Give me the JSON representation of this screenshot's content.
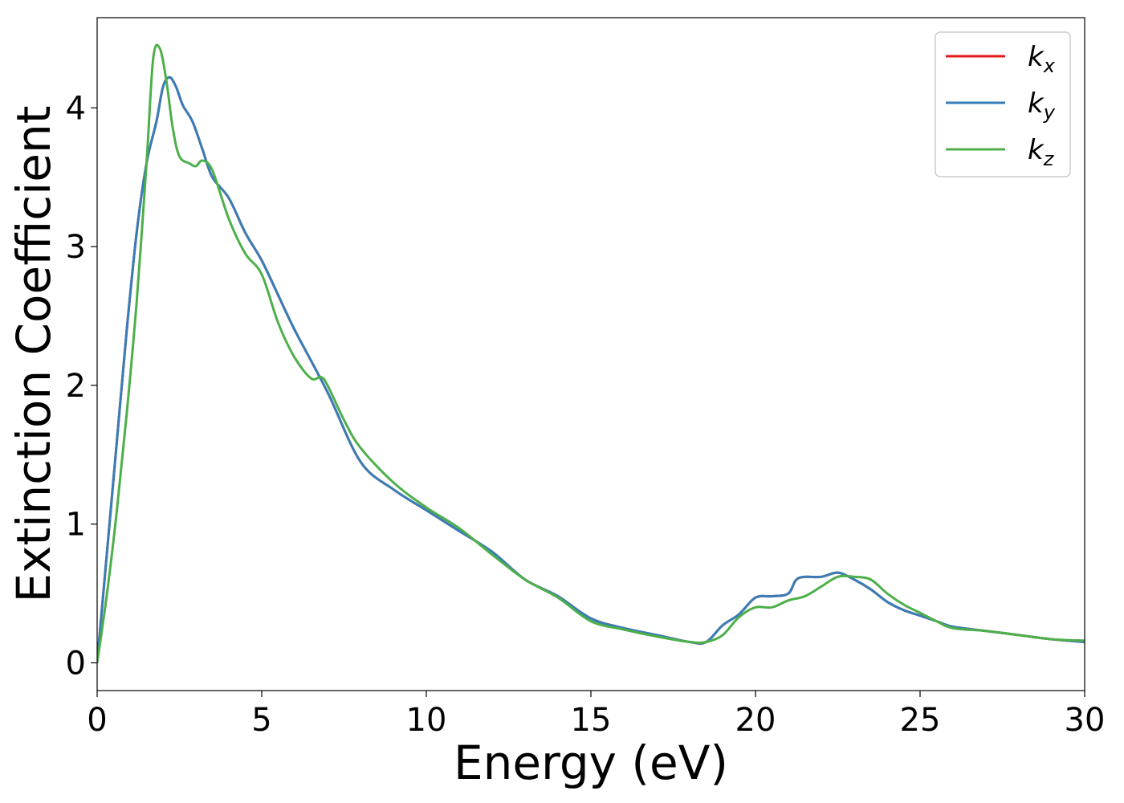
{
  "chart_data": {
    "type": "line",
    "title": "",
    "xlabel": "Energy (eV)",
    "ylabel": "Extinction Coefficient",
    "xlim": [
      0,
      30
    ],
    "ylim": [
      -0.2,
      4.65
    ],
    "xticks": [
      0,
      5,
      10,
      15,
      20,
      25,
      30
    ],
    "yticks": [
      0,
      1,
      2,
      3,
      4
    ],
    "grid": false,
    "legend_position": "top-right",
    "series": [
      {
        "name": "k_x",
        "legend_base": "k",
        "legend_sub": "x",
        "color": "#e41a1c",
        "x": [
          0,
          0.3,
          0.6,
          0.9,
          1.2,
          1.5,
          1.8,
          2.0,
          2.2,
          2.4,
          2.6,
          2.9,
          3.2,
          3.5,
          4.0,
          4.5,
          5.0,
          5.5,
          6.0,
          7.0,
          8.0,
          9.0,
          10.0,
          11.0,
          12.0,
          13.0,
          14.0,
          15.0,
          16.0,
          17.0,
          18.0,
          18.5,
          19.0,
          19.5,
          20.0,
          20.5,
          21.0,
          21.3,
          22.0,
          22.5,
          23.0,
          23.5,
          24.0,
          24.5,
          25.0,
          25.5,
          26.0,
          27.0,
          28.0,
          29.0,
          30.0
        ],
        "y": [
          0,
          0.8,
          1.6,
          2.4,
          3.1,
          3.6,
          3.9,
          4.15,
          4.22,
          4.15,
          4.02,
          3.9,
          3.7,
          3.5,
          3.35,
          3.1,
          2.9,
          2.65,
          2.4,
          1.95,
          1.45,
          1.25,
          1.1,
          0.95,
          0.8,
          0.6,
          0.48,
          0.32,
          0.25,
          0.2,
          0.15,
          0.15,
          0.27,
          0.35,
          0.47,
          0.48,
          0.5,
          0.61,
          0.62,
          0.65,
          0.6,
          0.53,
          0.44,
          0.38,
          0.34,
          0.3,
          0.26,
          0.23,
          0.2,
          0.17,
          0.15
        ]
      },
      {
        "name": "k_y",
        "legend_base": "k",
        "legend_sub": "y",
        "color": "#377eb8",
        "x": [
          0,
          0.3,
          0.6,
          0.9,
          1.2,
          1.5,
          1.8,
          2.0,
          2.2,
          2.4,
          2.6,
          2.9,
          3.2,
          3.5,
          4.0,
          4.5,
          5.0,
          5.5,
          6.0,
          7.0,
          8.0,
          9.0,
          10.0,
          11.0,
          12.0,
          13.0,
          14.0,
          15.0,
          16.0,
          17.0,
          18.0,
          18.5,
          19.0,
          19.5,
          20.0,
          20.5,
          21.0,
          21.3,
          22.0,
          22.5,
          23.0,
          23.5,
          24.0,
          24.5,
          25.0,
          25.5,
          26.0,
          27.0,
          28.0,
          29.0,
          30.0
        ],
        "y": [
          0,
          0.8,
          1.6,
          2.4,
          3.1,
          3.6,
          3.9,
          4.15,
          4.22,
          4.15,
          4.02,
          3.9,
          3.7,
          3.5,
          3.35,
          3.1,
          2.9,
          2.65,
          2.4,
          1.95,
          1.45,
          1.25,
          1.1,
          0.95,
          0.8,
          0.6,
          0.48,
          0.32,
          0.25,
          0.2,
          0.15,
          0.15,
          0.27,
          0.35,
          0.47,
          0.48,
          0.5,
          0.61,
          0.62,
          0.65,
          0.6,
          0.53,
          0.44,
          0.38,
          0.34,
          0.3,
          0.26,
          0.23,
          0.2,
          0.17,
          0.15
        ]
      },
      {
        "name": "k_z",
        "legend_base": "k",
        "legend_sub": "z",
        "color": "#4daf4a",
        "x": [
          0,
          0.3,
          0.6,
          0.9,
          1.2,
          1.5,
          1.7,
          1.9,
          2.1,
          2.3,
          2.5,
          2.8,
          3.0,
          3.2,
          3.5,
          4.0,
          4.5,
          5.0,
          5.5,
          6.0,
          6.5,
          6.8,
          7.0,
          7.5,
          8.0,
          9.0,
          10.0,
          11.0,
          12.0,
          13.0,
          14.0,
          15.0,
          16.0,
          17.0,
          18.0,
          18.5,
          19.0,
          19.5,
          20.0,
          20.5,
          21.0,
          21.5,
          22.0,
          22.5,
          23.0,
          23.5,
          24.0,
          24.5,
          25.0,
          25.5,
          26.0,
          27.0,
          28.0,
          29.0,
          30.0
        ],
        "y": [
          0,
          0.5,
          1.1,
          1.8,
          2.6,
          3.6,
          4.35,
          4.43,
          4.2,
          3.85,
          3.65,
          3.6,
          3.58,
          3.62,
          3.55,
          3.2,
          2.95,
          2.8,
          2.45,
          2.2,
          2.05,
          2.06,
          2.0,
          1.75,
          1.55,
          1.3,
          1.12,
          0.97,
          0.78,
          0.6,
          0.47,
          0.3,
          0.24,
          0.19,
          0.15,
          0.15,
          0.2,
          0.33,
          0.4,
          0.4,
          0.45,
          0.48,
          0.55,
          0.62,
          0.62,
          0.6,
          0.5,
          0.42,
          0.36,
          0.3,
          0.25,
          0.23,
          0.2,
          0.17,
          0.16
        ]
      }
    ]
  }
}
